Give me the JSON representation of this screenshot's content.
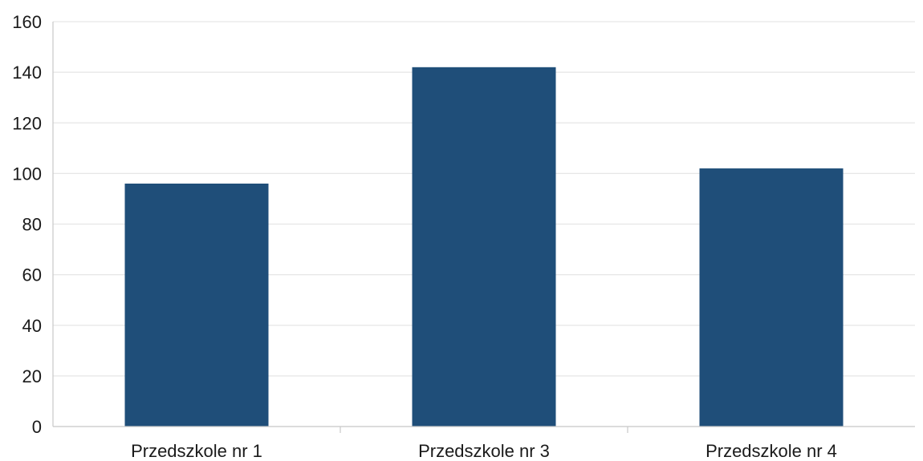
{
  "chart_data": {
    "type": "bar",
    "categories": [
      "Przedszkole nr 1",
      "Przedszkole nr 3",
      "Przedszkole nr 4"
    ],
    "values": [
      96,
      142,
      102
    ],
    "ylim": [
      0,
      160
    ],
    "yticks": [
      0,
      20,
      40,
      60,
      80,
      100,
      120,
      140,
      160
    ],
    "grid": true,
    "colors": {
      "bar": "#1f4e79"
    }
  }
}
